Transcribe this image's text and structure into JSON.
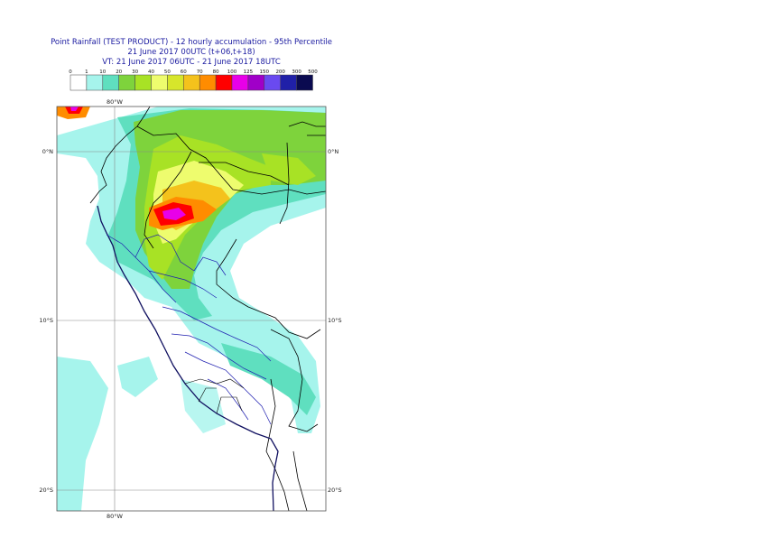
{
  "title": {
    "line1": "Point Rainfall (TEST PRODUCT) - 12 hourly accumulation - 95th Percentile",
    "line2": "21 June 2017 00UTC (t+06,t+18)",
    "line3": "VT: 21 June 2017 06UTC - 21 June 2017 18UTC"
  },
  "legend": {
    "thresholds": [
      "0",
      "1",
      "10",
      "20",
      "30",
      "40",
      "50",
      "60",
      "70",
      "80",
      "100",
      "125",
      "150",
      "200",
      "300",
      "500"
    ],
    "colors": [
      "#ffffff",
      "#a6f4ec",
      "#5fdfbf",
      "#7ed33c",
      "#a8e225",
      "#eefc6e",
      "#d7e62b",
      "#f4c21c",
      "#ff8c00",
      "#ff0000",
      "#e800e8",
      "#a000c8",
      "#6a4af0",
      "#2020a8",
      "#0a0a50"
    ]
  },
  "map": {
    "lat_labels": [
      "0°N",
      "10°S",
      "20°S"
    ],
    "lon_label_top": "80°W",
    "lon_label_bottom": "80°W"
  }
}
